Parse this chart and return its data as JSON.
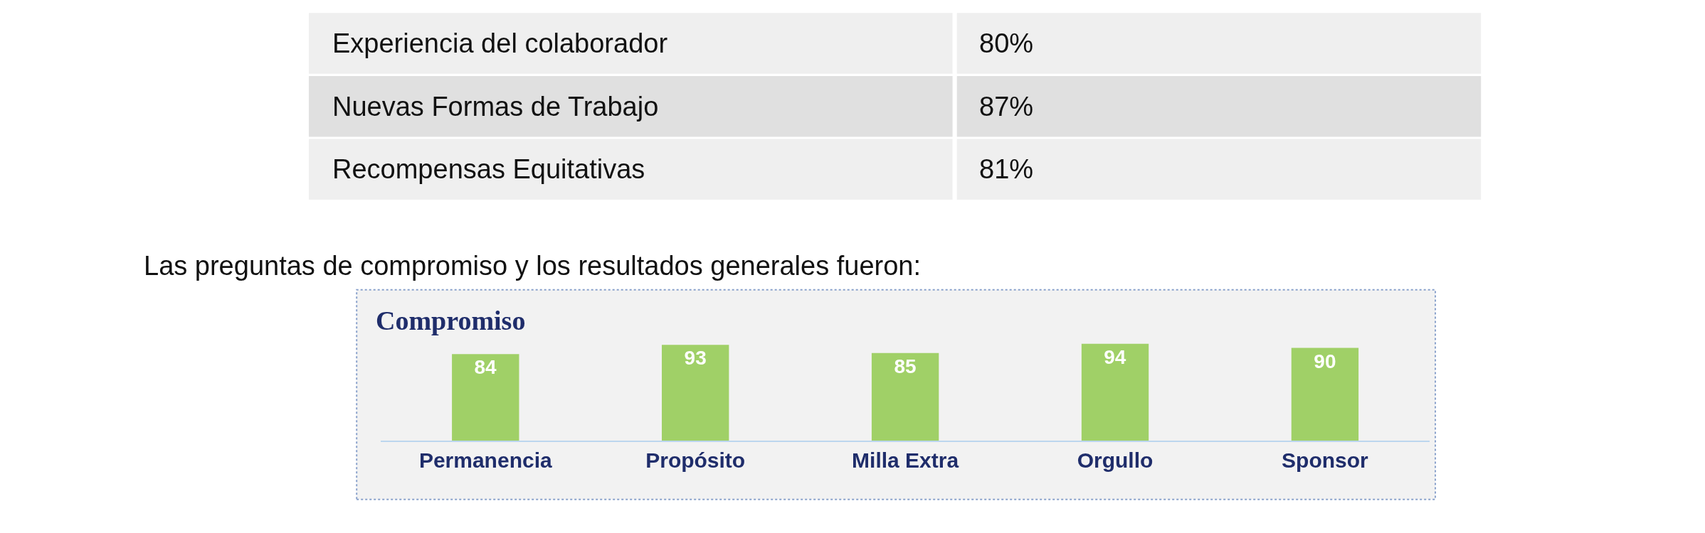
{
  "chart_data": [
    {
      "type": "other",
      "categories": [
        "Experiencia del colaborador",
        "Nuevas Formas de Trabajo",
        "Recompensas Equitativas"
      ],
      "value_labels": [
        "80%",
        "87%",
        "81%"
      ],
      "colors": [
        "#efefef",
        "#e0e0e0",
        "#efefef"
      ]
    },
    {
      "type": "bar",
      "title": "Compromiso",
      "annotations": [
        "Las preguntas de compromiso y los resultados generales fueron:"
      ],
      "categories": [
        "Permanencia",
        "Propósito",
        "Milla Extra",
        "Orgullo",
        "Sponsor"
      ],
      "values": [
        84,
        93,
        85,
        94,
        90
      ],
      "color": "#a0d067",
      "data_labels": true,
      "legend": false,
      "grid": false,
      "tick_labels": "x"
    }
  ]
}
